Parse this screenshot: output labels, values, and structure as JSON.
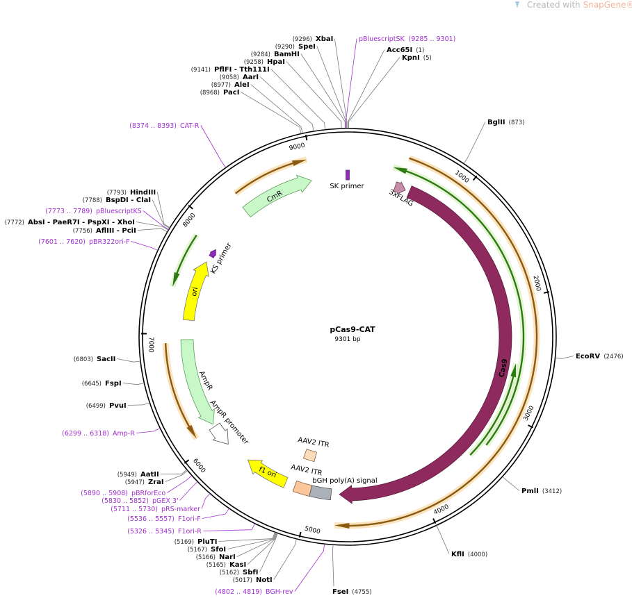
{
  "watermark": {
    "prefix": "Created with",
    "brand": "SnapGene®"
  },
  "map": {
    "name": "pCas9-CAT",
    "length": "9301 bp"
  },
  "ticks": [
    1000,
    2000,
    3000,
    4000,
    5000,
    6000,
    7000,
    8000,
    9000
  ],
  "sites": [
    {
      "name": "XbaI",
      "position": "(9296)"
    },
    {
      "name": "SpeI",
      "position": "(9290)"
    },
    {
      "name": "BamHI",
      "position": "(9284)"
    },
    {
      "name": "HpaI",
      "position": "(9258)"
    },
    {
      "name": "PflFI - Tth111I",
      "position": "(9141)"
    },
    {
      "name": "AarI",
      "position": "(9058)"
    },
    {
      "name": "AleI",
      "position": "(8977)"
    },
    {
      "name": "PacI",
      "position": "(8968)"
    },
    {
      "name": "Acc65I",
      "position": "(1)"
    },
    {
      "name": "KpnI",
      "position": "(5)"
    },
    {
      "name": "BglII",
      "position": "(873)"
    },
    {
      "name": "EcoRV",
      "position": "(2476)"
    },
    {
      "name": "PmlI",
      "position": "(3412)"
    },
    {
      "name": "KflI",
      "position": "(4000)"
    },
    {
      "name": "FseI",
      "position": "(4755)"
    },
    {
      "name": "NotI",
      "position": "(5017)"
    },
    {
      "name": "SbfI",
      "position": "(5162)"
    },
    {
      "name": "KasI",
      "position": "(5165)"
    },
    {
      "name": "NarI",
      "position": "(5166)"
    },
    {
      "name": "SfoI",
      "position": "(5167)"
    },
    {
      "name": "PluTI",
      "position": "(5169)"
    },
    {
      "name": "ZraI",
      "position": "(5947)"
    },
    {
      "name": "AatII",
      "position": "(5949)"
    },
    {
      "name": "PvuI",
      "position": "(6499)"
    },
    {
      "name": "FspI",
      "position": "(6645)"
    },
    {
      "name": "SacII",
      "position": "(6803)"
    },
    {
      "name": "AflIII - PciI",
      "position": "(7756)"
    },
    {
      "name": "AbsI - PaeR7I - PspXI - XhoI",
      "position": "(7772)"
    },
    {
      "name": "BspDI - ClaI",
      "position": "(7788)"
    },
    {
      "name": "HindIII",
      "position": "(7793)"
    }
  ],
  "primers": [
    {
      "name": "pBluescriptSK",
      "range": "(9285 .. 9301)"
    },
    {
      "name": "BGH-rev",
      "range": "(4802 .. 4819)"
    },
    {
      "name": "F1ori-R",
      "range": "(5326 .. 5345)"
    },
    {
      "name": "F1ori-F",
      "range": "(5536 .. 5557)"
    },
    {
      "name": "pRS-marker",
      "range": "(5711 .. 5730)"
    },
    {
      "name": "pGEX 3'",
      "range": "(5830 .. 5852)"
    },
    {
      "name": "pBRforEco",
      "range": "(5890 .. 5908)"
    },
    {
      "name": "Amp-R",
      "range": "(6299 .. 6318)"
    },
    {
      "name": "pBR322ori-F",
      "range": "(7601 .. 7620)"
    },
    {
      "name": "pBluescriptKS",
      "range": "(7773 .. 7789)"
    },
    {
      "name": "CAT-R",
      "range": "(8374 .. 8393)"
    }
  ],
  "features": [
    "CmR",
    "SK primer",
    "3xFLAG",
    "Cas9",
    "ori",
    "KS primer",
    "AmpR",
    "AmpR promoter",
    "f1 ori",
    "AAV2 ITR",
    "AAV2 ITR",
    "bGH poly(A) signal"
  ]
}
